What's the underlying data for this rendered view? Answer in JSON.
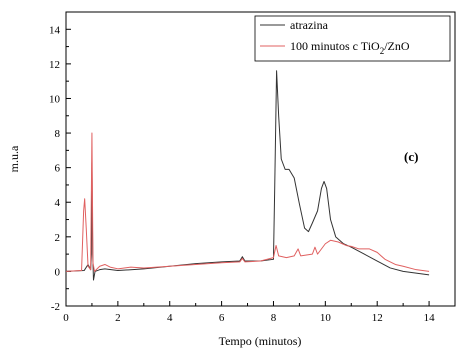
{
  "chart_data": {
    "type": "line",
    "xlabel": "Tempo (minutos)",
    "ylabel": "m.u.a",
    "xlim": [
      0,
      15
    ],
    "ylim": [
      -2,
      15
    ],
    "xticks": [
      0,
      2,
      4,
      6,
      8,
      10,
      12,
      14
    ],
    "yticks": [
      -2,
      0,
      2,
      4,
      6,
      8,
      10,
      12,
      14
    ],
    "grid": false,
    "legend_position": "top-right",
    "annotation": "(c)",
    "series": [
      {
        "name": "atrazina",
        "color": "#333333",
        "points": [
          [
            0,
            0.0
          ],
          [
            0.7,
            0.05
          ],
          [
            0.85,
            0.4
          ],
          [
            0.95,
            0.1
          ],
          [
            0.98,
            1.0
          ],
          [
            1.0,
            6.3
          ],
          [
            1.03,
            1.0
          ],
          [
            1.06,
            -0.5
          ],
          [
            1.12,
            0.0
          ],
          [
            1.3,
            0.1
          ],
          [
            1.5,
            0.15
          ],
          [
            2.0,
            0.05
          ],
          [
            3.0,
            0.15
          ],
          [
            4.0,
            0.3
          ],
          [
            5.0,
            0.45
          ],
          [
            6.0,
            0.55
          ],
          [
            6.7,
            0.6
          ],
          [
            6.8,
            0.85
          ],
          [
            6.9,
            0.6
          ],
          [
            7.5,
            0.6
          ],
          [
            8.0,
            0.7
          ],
          [
            8.05,
            5.0
          ],
          [
            8.12,
            11.6
          ],
          [
            8.2,
            9.0
          ],
          [
            8.3,
            6.5
          ],
          [
            8.45,
            5.9
          ],
          [
            8.6,
            5.9
          ],
          [
            8.8,
            5.4
          ],
          [
            9.0,
            3.9
          ],
          [
            9.2,
            2.5
          ],
          [
            9.35,
            2.3
          ],
          [
            9.5,
            2.8
          ],
          [
            9.7,
            3.5
          ],
          [
            9.85,
            4.8
          ],
          [
            9.95,
            5.2
          ],
          [
            10.05,
            4.8
          ],
          [
            10.2,
            3.0
          ],
          [
            10.4,
            2.0
          ],
          [
            10.7,
            1.6
          ],
          [
            11.0,
            1.4
          ],
          [
            11.5,
            1.0
          ],
          [
            12.0,
            0.6
          ],
          [
            12.5,
            0.2
          ],
          [
            13.0,
            0.0
          ],
          [
            13.5,
            -0.1
          ],
          [
            14.0,
            -0.2
          ]
        ]
      },
      {
        "name": "100 minutos c TiO2/ZnO",
        "color": "#e06060",
        "points": [
          [
            0,
            0.0
          ],
          [
            0.6,
            0.05
          ],
          [
            0.68,
            3.5
          ],
          [
            0.72,
            4.2
          ],
          [
            0.78,
            2.5
          ],
          [
            0.85,
            0.3
          ],
          [
            0.95,
            0.1
          ],
          [
            1.0,
            8.0
          ],
          [
            1.04,
            0.5
          ],
          [
            1.1,
            0.0
          ],
          [
            1.3,
            0.3
          ],
          [
            1.5,
            0.4
          ],
          [
            1.7,
            0.25
          ],
          [
            2.0,
            0.15
          ],
          [
            2.5,
            0.25
          ],
          [
            3.0,
            0.2
          ],
          [
            4.0,
            0.3
          ],
          [
            5.0,
            0.4
          ],
          [
            6.0,
            0.5
          ],
          [
            6.7,
            0.55
          ],
          [
            6.8,
            0.75
          ],
          [
            6.9,
            0.55
          ],
          [
            7.5,
            0.6
          ],
          [
            8.0,
            0.8
          ],
          [
            8.1,
            1.5
          ],
          [
            8.2,
            0.9
          ],
          [
            8.5,
            0.8
          ],
          [
            8.8,
            0.9
          ],
          [
            8.95,
            1.3
          ],
          [
            9.05,
            0.9
          ],
          [
            9.5,
            1.0
          ],
          [
            9.6,
            1.4
          ],
          [
            9.7,
            1.0
          ],
          [
            10.0,
            1.6
          ],
          [
            10.2,
            1.8
          ],
          [
            10.5,
            1.7
          ],
          [
            10.8,
            1.5
          ],
          [
            11.0,
            1.45
          ],
          [
            11.3,
            1.3
          ],
          [
            11.7,
            1.3
          ],
          [
            12.0,
            1.1
          ],
          [
            12.3,
            0.7
          ],
          [
            12.7,
            0.4
          ],
          [
            13.0,
            0.3
          ],
          [
            13.5,
            0.1
          ],
          [
            14.0,
            0.0
          ]
        ]
      }
    ]
  }
}
